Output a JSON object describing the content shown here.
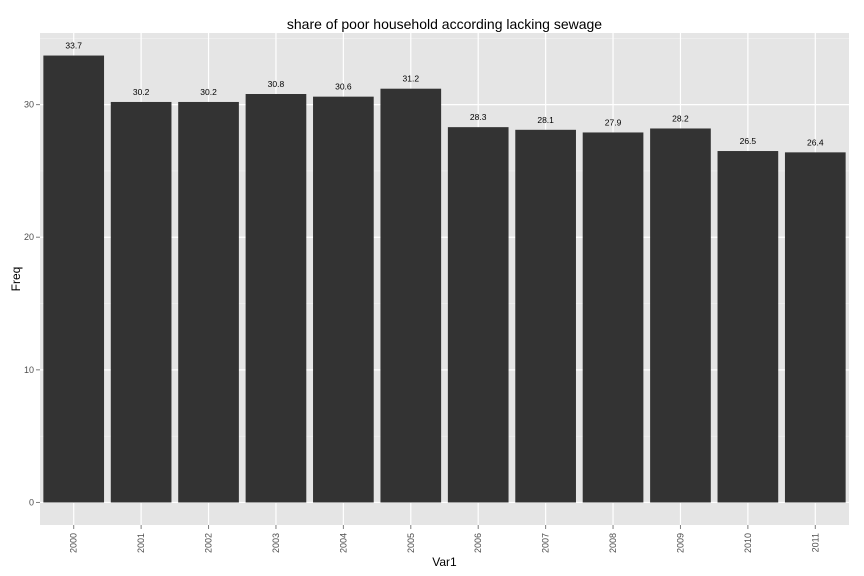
{
  "chart_data": {
    "type": "bar",
    "title": "share of poor household according lacking sewage",
    "xlabel": "Var1",
    "ylabel": "Freq",
    "categories": [
      "2000",
      "2001",
      "2002",
      "2003",
      "2004",
      "2005",
      "2006",
      "2007",
      "2008",
      "2009",
      "2010",
      "2011"
    ],
    "values": [
      33.7,
      30.2,
      30.2,
      30.8,
      30.6,
      31.2,
      28.3,
      28.1,
      27.9,
      28.2,
      26.5,
      26.4
    ],
    "data_labels": [
      "33.7",
      "30.2",
      "30.2",
      "30.8",
      "30.6",
      "31.2",
      "28.3",
      "28.1",
      "27.9",
      "28.2",
      "26.5",
      "26.4"
    ],
    "yticks": [
      0,
      10,
      20,
      30
    ],
    "ytick_labels": [
      "0",
      "10",
      "20",
      "30"
    ],
    "ylim": [
      -1.7,
      35.4
    ],
    "grid": true,
    "legend": "none",
    "colors": {
      "bar": "#333333",
      "panel_background": "#e5e5e5",
      "grid_major": "#ffffff",
      "grid_minor": "#f2f2f2"
    }
  }
}
